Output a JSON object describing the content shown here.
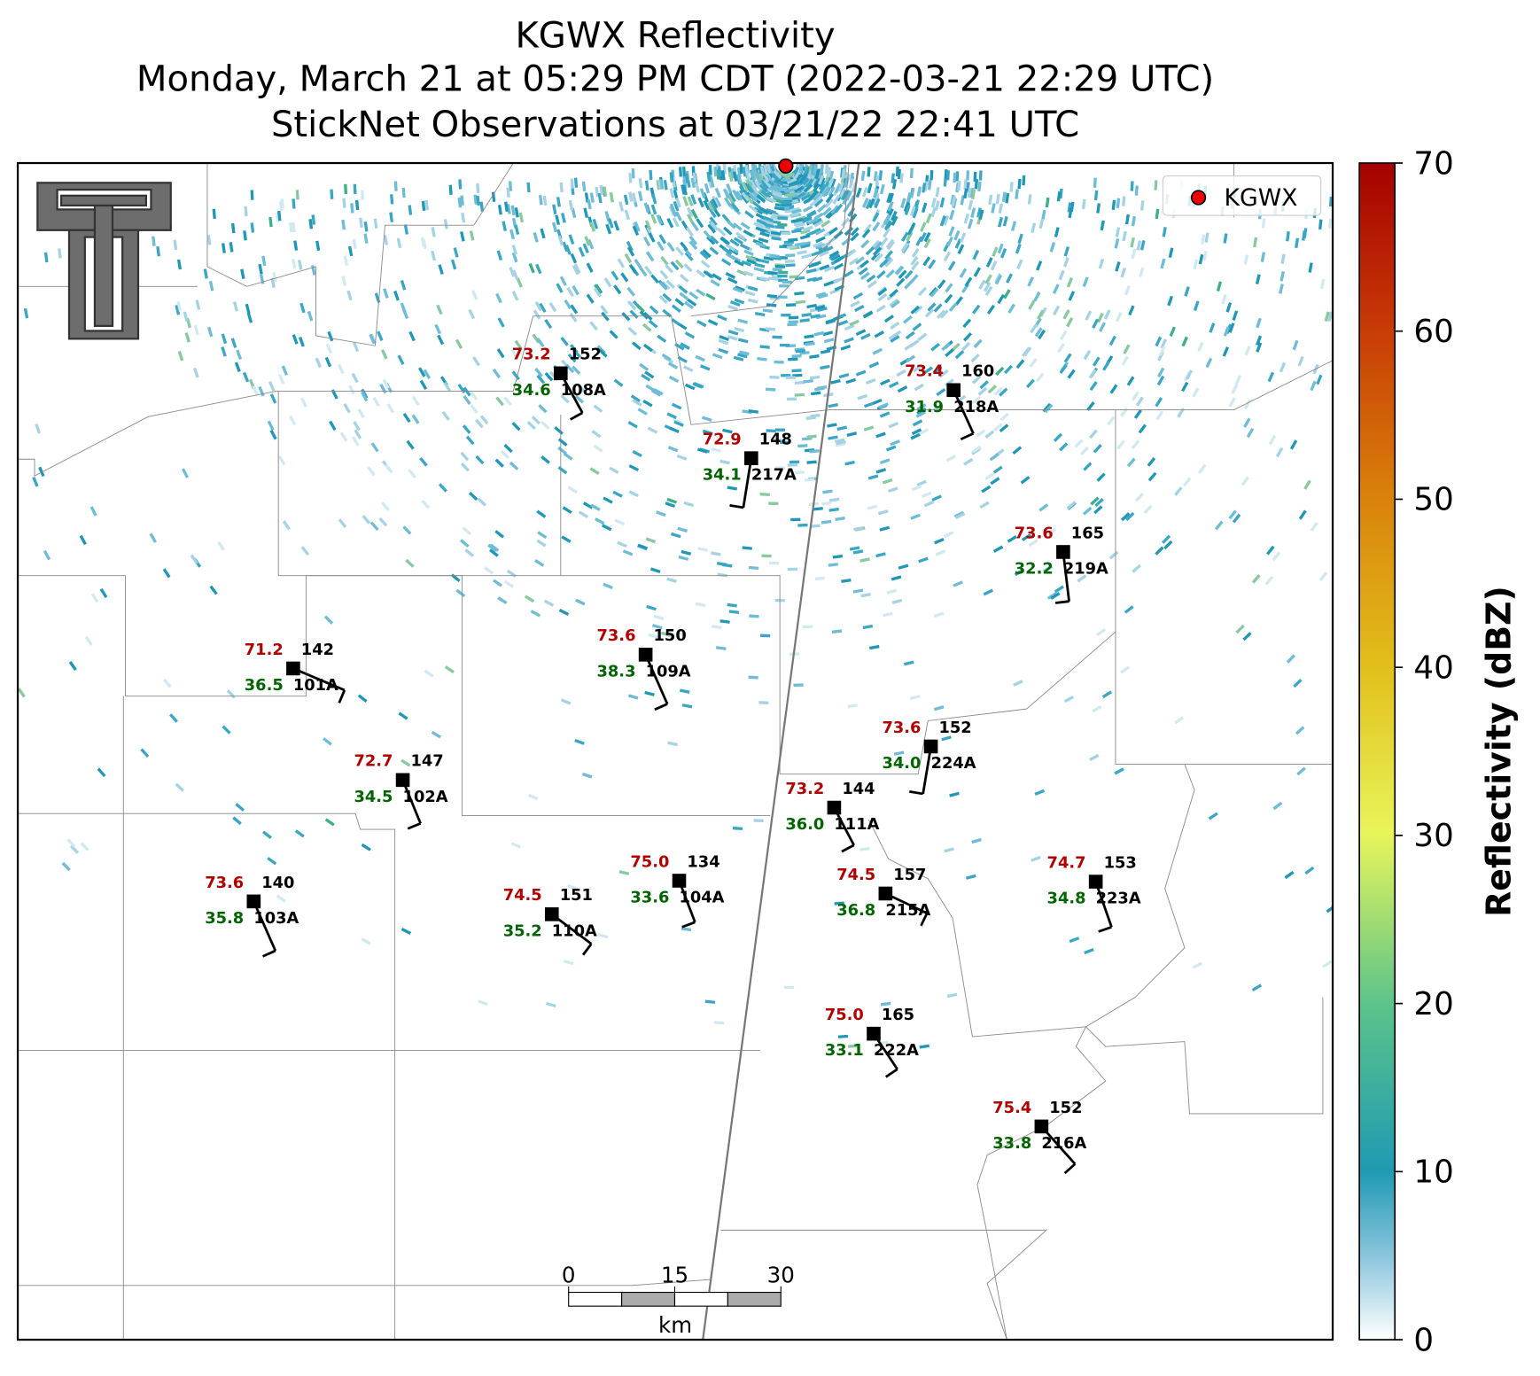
{
  "header": {
    "title": "KGWX Reflectivity",
    "subtitle": "Monday, March 21 at 05:29 PM CDT (2022-03-21 22:29 UTC)",
    "observations": "StickNet Observations at 03/21/22 22:41 UTC"
  },
  "legend": {
    "label": "KGWX"
  },
  "colorbar": {
    "label": "Reflectivity (dBZ)",
    "lim": [
      0,
      70
    ],
    "ticks": [
      0,
      10,
      20,
      30,
      40,
      50,
      60,
      70
    ]
  },
  "scale_bar": {
    "ticks": [
      0,
      15,
      30
    ],
    "unit": "km"
  },
  "stations": [
    {
      "id": "108A",
      "temperature": "73.2",
      "dewpoint": "34.6",
      "value": "152"
    },
    {
      "id": "217A",
      "temperature": "72.9",
      "dewpoint": "34.1",
      "value": "148"
    },
    {
      "id": "218A",
      "temperature": "73.4",
      "dewpoint": "31.9",
      "value": "160"
    },
    {
      "id": "219A",
      "temperature": "73.6",
      "dewpoint": "32.2",
      "value": "165"
    },
    {
      "id": "101A",
      "temperature": "71.2",
      "dewpoint": "36.5",
      "value": "142"
    },
    {
      "id": "109A",
      "temperature": "73.6",
      "dewpoint": "38.3",
      "value": "150"
    },
    {
      "id": "224A",
      "temperature": "73.6",
      "dewpoint": "34.0",
      "value": "152"
    },
    {
      "id": "102A",
      "temperature": "72.7",
      "dewpoint": "34.5",
      "value": "147"
    },
    {
      "id": "111A",
      "temperature": "73.2",
      "dewpoint": "36.0",
      "value": "144"
    },
    {
      "id": "103A",
      "temperature": "73.6",
      "dewpoint": "35.8",
      "value": "140"
    },
    {
      "id": "110A",
      "temperature": "74.5",
      "dewpoint": "35.2",
      "value": "151"
    },
    {
      "id": "104A",
      "temperature": "75.0",
      "dewpoint": "33.6",
      "value": "134"
    },
    {
      "id": "215A",
      "temperature": "74.5",
      "dewpoint": "36.8",
      "value": "157"
    },
    {
      "id": "223A",
      "temperature": "74.7",
      "dewpoint": "34.8",
      "value": "153"
    },
    {
      "id": "222A",
      "temperature": "75.0",
      "dewpoint": "33.1",
      "value": "165"
    },
    {
      "id": "216A",
      "temperature": "75.4",
      "dewpoint": "33.8",
      "value": "152"
    }
  ]
}
